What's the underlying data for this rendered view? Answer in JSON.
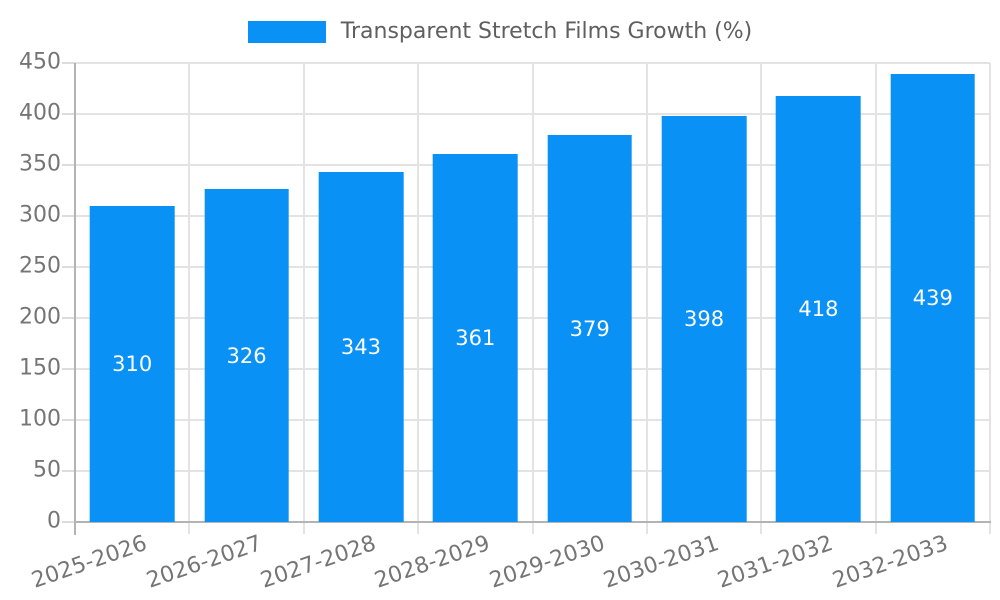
{
  "chart_data": {
    "type": "bar",
    "title": "",
    "legend_label": "Transparent Stretch Films Growth (%)",
    "legend_position": "top",
    "categories": [
      "2025-2026",
      "2026-2027",
      "2027-2028",
      "2028-2029",
      "2029-2030",
      "2030-2031",
      "2031-2032",
      "2032-2033"
    ],
    "values": [
      310,
      326,
      343,
      361,
      379,
      398,
      418,
      439
    ],
    "xlabel": "",
    "ylabel": "",
    "ylim": [
      0,
      450
    ],
    "yticks": [
      0,
      50,
      100,
      150,
      200,
      250,
      300,
      350,
      400,
      450
    ],
    "grid": true,
    "xlabel_rotation_deg": -19,
    "bar_label_position": "inside-center"
  },
  "colors": {
    "bar": "#0991f6",
    "grid": "#e3e3e3",
    "axis": "#b3b3b3",
    "tick": "#dcdcdc",
    "axis_text": "#757575",
    "legend_text": "#5f5f5f",
    "bar_label": "#ffffff",
    "background": "#ffffff"
  }
}
